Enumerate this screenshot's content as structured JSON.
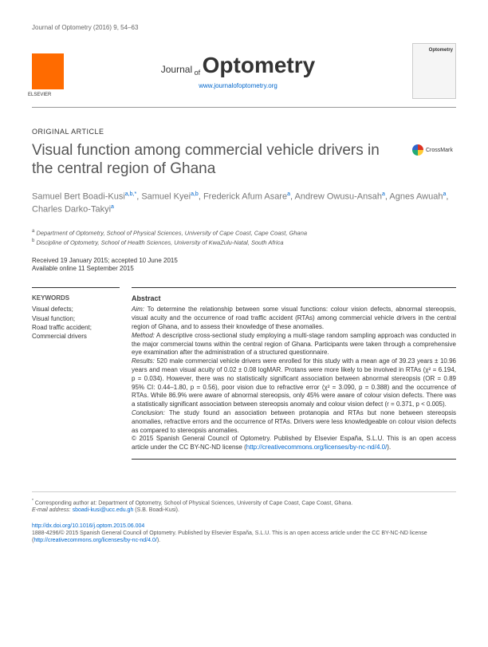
{
  "header": {
    "citation": "Journal of Optometry (2016) 9, 54–63"
  },
  "banner": {
    "journal_prefix": "Journal",
    "journal_of": "of",
    "journal_name": "Optometry",
    "url": "www.journalofoptometry.org"
  },
  "article_type": "ORIGINAL ARTICLE",
  "title": "Visual function among commercial vehicle drivers in the central region of Ghana",
  "crossmark_label": "CrossMark",
  "authors": {
    "a1": {
      "name": "Samuel Bert Boadi-Kusi",
      "affil": "a,b,*"
    },
    "a2": {
      "name": "Samuel Kyei",
      "affil": "a,b"
    },
    "a3": {
      "name": "Frederick Afum Asare",
      "affil": "a"
    },
    "a4": {
      "name": "Andrew Owusu-Ansah",
      "affil": "a"
    },
    "a5": {
      "name": "Agnes Awuah",
      "affil": "a"
    },
    "a6": {
      "name": "Charles Darko-Takyi",
      "affil": "a"
    }
  },
  "affiliations": {
    "a": "Department of Optometry, School of Physical Sciences, University of Cape Coast, Cape Coast, Ghana",
    "b": "Discipline of Optometry, School of Health Sciences, University of KwaZulu-Natal, South Africa"
  },
  "dates": {
    "received_accepted": "Received 19 January 2015; accepted 10 June 2015",
    "online": "Available online 11 September 2015"
  },
  "keywords": {
    "title": "KEYWORDS",
    "items": "Visual defects;\nVisual function;\nRoad traffic accident;\nCommercial drivers"
  },
  "abstract": {
    "title": "Abstract",
    "aim_label": "Aim:",
    "aim": " To determine the relationship between some visual functions: colour vision defects, abnormal stereopsis, visual acuity and the occurrence of road traffic accident (RTAs) among commercial vehicle drivers in the central region of Ghana, and to assess their knowledge of these anomalies.",
    "method_label": "Method:",
    "method": " A descriptive cross-sectional study employing a multi-stage random sampling approach was conducted in the major commercial towns within the central region of Ghana. Participants were taken through a comprehensive eye examination after the administration of a structured questionnaire.",
    "results_label": "Results:",
    "results": " 520 male commercial vehicle drivers were enrolled for this study with a mean age of 39.23 years ± 10.96 years and mean visual acuity of 0.02 ± 0.08 logMAR. Protans were more likely to be involved in RTAs (χ² = 6.194, p = 0.034). However, there was no statistically significant association between abnormal stereopsis (OR = 0.89 95% CI: 0.44–1.80, p = 0.56), poor vision due to refractive error (χ² = 3.090, p = 0.388) and the occurrence of RTAs. While 86.9% were aware of abnormal stereopsis, only 45% were aware of colour vision defects. There was a statistically significant association between stereopsis anomaly and colour vision defect (r = 0.371, p < 0.005).",
    "conclusion_label": "Conclusion:",
    "conclusion": " The study found an association between protanopia and RTAs but none between stereopsis anomalies, refractive errors and the occurrence of RTAs. Drivers were less knowledgeable on colour vision defects as compared to stereopsis anomalies.",
    "copyright": "© 2015 Spanish General Council of Optometry. Published by Elsevier España, S.L.U. This is an open access article under the CC BY-NC-ND license (",
    "license_url": "http://creativecommons.org/licenses/by-nc-nd/4.0/",
    "copyright_close": ")."
  },
  "footer": {
    "corresponding": "Corresponding author at: Department of Optometry, School of Physical Sciences, University of Cape Coast, Cape Coast, Ghana.",
    "email_label": "E-mail address: ",
    "email": "sboadi-kusi@ucc.edu.gh",
    "email_author": " (S.B. Boadi-Kusi).",
    "doi": "http://dx.doi.org/10.1016/j.optom.2015.06.004",
    "issn_copyright": "1888-4296/© 2015 Spanish General Council of Optometry. Published by Elsevier España, S.L.U. This is an open access article under the CC BY-NC-ND license (",
    "license_url2": "http://creativecommons.org/licenses/by-nc-nd/4.0/",
    "close": ")."
  },
  "colors": {
    "link": "#0066cc",
    "elsevier_orange": "#ff6b00",
    "text": "#333333",
    "muted": "#555555"
  }
}
